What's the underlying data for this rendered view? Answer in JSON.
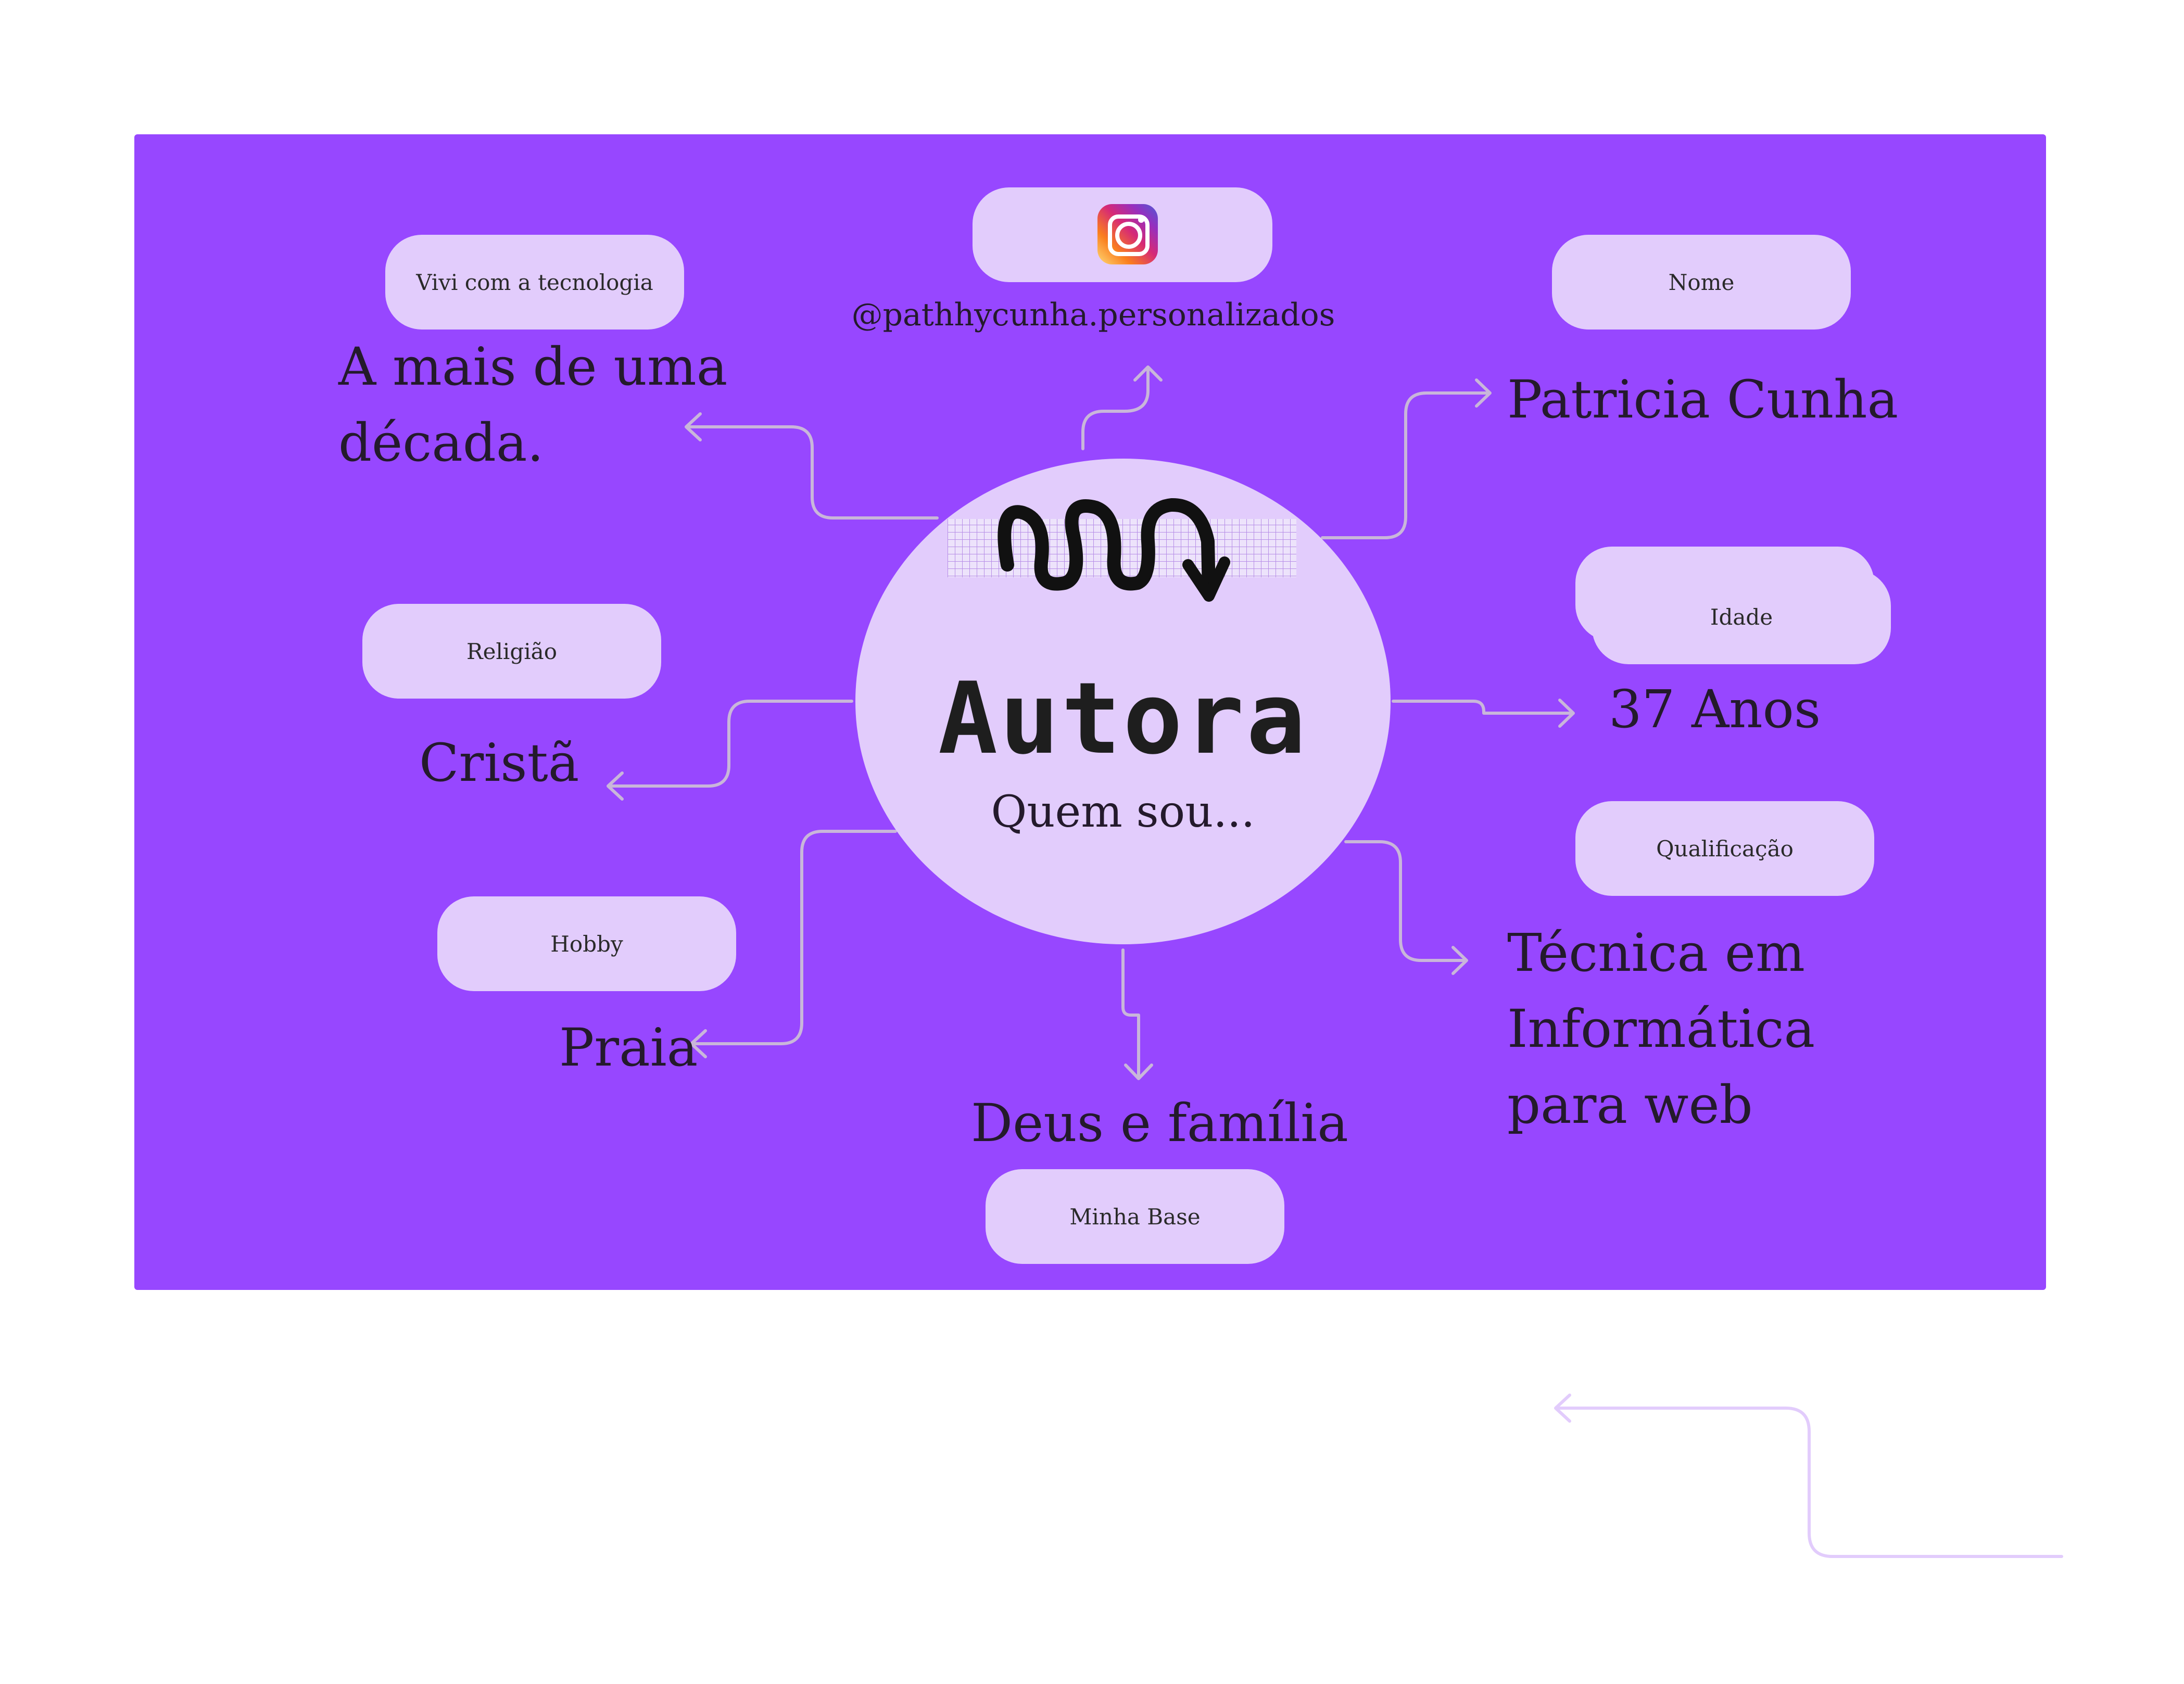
{
  "center": {
    "title": "Autora",
    "subtitle": "Quem sou..."
  },
  "instagram": {
    "handle": "@pathhycunha.personalizados",
    "icon": "instagram-icon"
  },
  "nodes": {
    "tecnologia": {
      "label": "Vivi com a tecnologia",
      "lines": [
        "A mais de uma",
        "década."
      ]
    },
    "nome": {
      "label": "Nome",
      "value": "Patricia Cunha"
    },
    "religiao": {
      "label": "Religião",
      "value": "Cristã"
    },
    "idade": {
      "label": "Idade",
      "value": "37 Anos"
    },
    "hobby": {
      "label": "Hobby",
      "value": "Praia"
    },
    "qualificacao": {
      "label": "Qualificação",
      "lines": [
        "Técnica em",
        "Informática",
        "para web"
      ]
    },
    "base": {
      "label": "Minha Base",
      "value": "Deus e família"
    }
  },
  "colors": {
    "board": "#9747FF",
    "tile": "#E2CCFC",
    "connector": "#C9B6DA",
    "text": "#241a2c",
    "stray_arrow": "#E2CCFC"
  }
}
